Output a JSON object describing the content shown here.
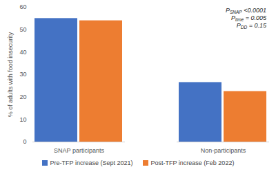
{
  "chart_data": {
    "type": "bar",
    "y_label": "% of adults with food insecurity",
    "categories": [
      "SNAP participants",
      "Non-participants"
    ],
    "series": [
      {
        "name": "Pre-TFP increase (Sept 2021)",
        "color": "#4472c4",
        "values": [
          55,
          26.5
        ]
      },
      {
        "name": "Post-TFP increase (Feb 2022)",
        "color": "#ed7d31",
        "values": [
          54,
          22.5
        ]
      }
    ],
    "ylim": [
      0,
      60
    ],
    "yticks": [
      0,
      10,
      20,
      30,
      40,
      50,
      60
    ],
    "grid": false,
    "legend": "bottom",
    "annotations": [
      {
        "label": "P",
        "subscript": "SNAP",
        "text": "<0.0001"
      },
      {
        "label": "P",
        "subscript": "time",
        "text": "= 0.005"
      },
      {
        "label": "P",
        "subscript": "DD",
        "text": "= 0.15"
      }
    ]
  }
}
